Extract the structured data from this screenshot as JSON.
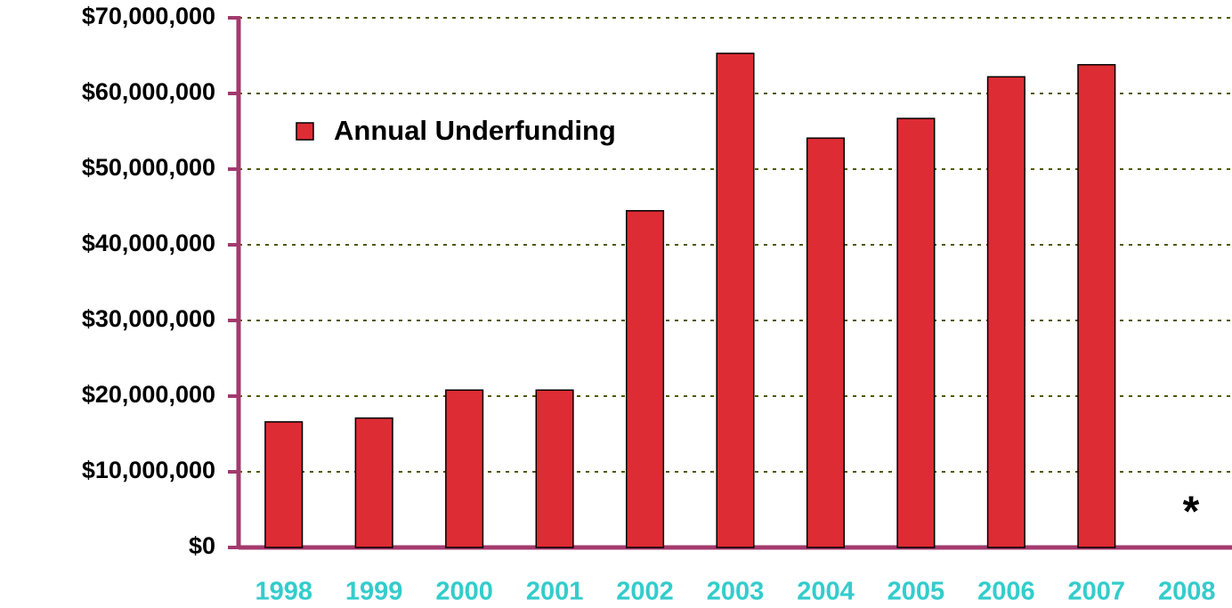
{
  "chart_data": {
    "type": "bar",
    "categories": [
      "1998",
      "1999",
      "2000",
      "2001",
      "2002",
      "2003",
      "2004",
      "2005",
      "2006",
      "2007",
      "2008"
    ],
    "series": [
      {
        "name": "Annual Underfunding",
        "color": "#dd2c34",
        "values": [
          16600000,
          17100000,
          20800000,
          20800000,
          44500000,
          65300000,
          54100000,
          56700000,
          62200000,
          63800000,
          null
        ]
      }
    ],
    "ylim": [
      0,
      70000000
    ],
    "yticks": [
      {
        "value": 0,
        "label": "$0"
      },
      {
        "value": 10000000,
        "label": "$10,000,000"
      },
      {
        "value": 20000000,
        "label": "$20,000,000"
      },
      {
        "value": 30000000,
        "label": "$30,000,000"
      },
      {
        "value": 40000000,
        "label": "$40,000,000"
      },
      {
        "value": 50000000,
        "label": "$50,000,000"
      },
      {
        "value": 60000000,
        "label": "$60,000,000"
      },
      {
        "value": 70000000,
        "label": "$70,000,000"
      }
    ],
    "grid": true,
    "legend": "upper left",
    "annotation": "*"
  }
}
